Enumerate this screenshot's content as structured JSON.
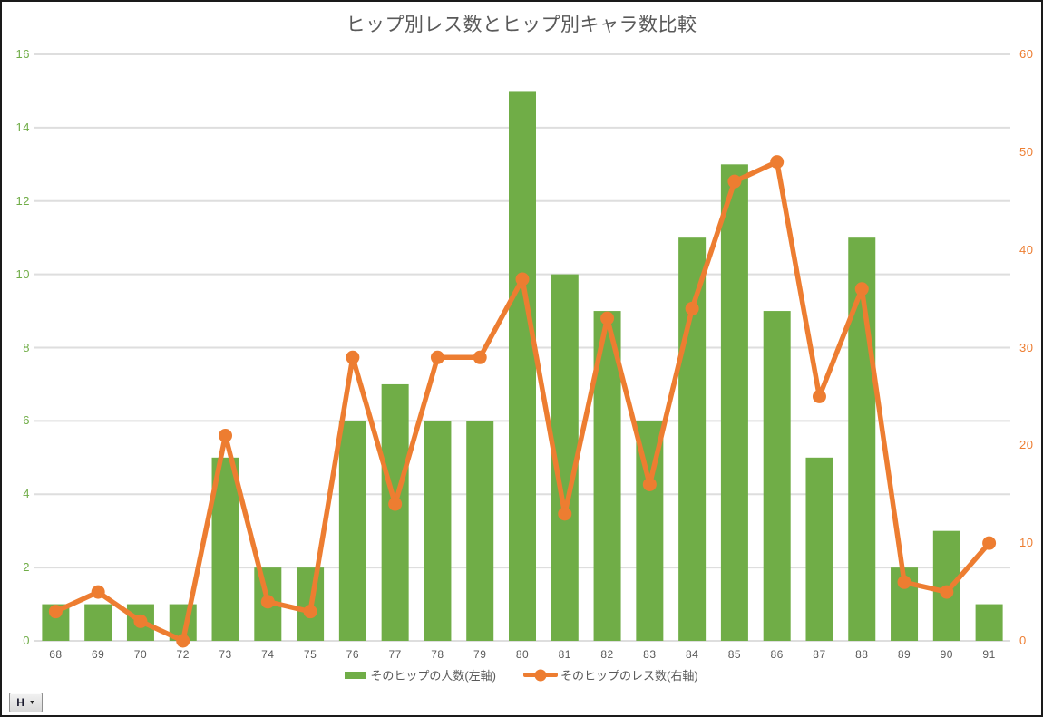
{
  "window": {
    "background": "#ffffff",
    "frame_border_color": "#1a1a1a"
  },
  "controls": {
    "dropdown_label": "H",
    "caret_icon": "▼"
  },
  "chart_data": {
    "type": "bar+line",
    "title": "ヒップ別レス数とヒップ別キャラ数比較",
    "title_color": "#595959",
    "categories": [
      68,
      69,
      70,
      72,
      73,
      74,
      75,
      76,
      77,
      78,
      79,
      80,
      81,
      82,
      83,
      84,
      85,
      86,
      87,
      88,
      89,
      90,
      91
    ],
    "series": [
      {
        "name": "そのヒップの人数(左軸)",
        "type": "bar",
        "axis": "left",
        "color": "#70AD47",
        "values": [
          1,
          1,
          1,
          1,
          5,
          2,
          2,
          6,
          7,
          6,
          6,
          15,
          10,
          9,
          6,
          11,
          13,
          9,
          5,
          11,
          2,
          3,
          1
        ]
      },
      {
        "name": "そのヒップのレス数(右軸)",
        "type": "line",
        "axis": "right",
        "color": "#ED7D31",
        "values": [
          3,
          5,
          2,
          0,
          21,
          4,
          3,
          29,
          14,
          29,
          29,
          37,
          13,
          33,
          16,
          34,
          47,
          49,
          25,
          36,
          6,
          5,
          10
        ]
      }
    ],
    "left_axis": {
      "min": 0,
      "max": 16,
      "ticks": [
        0,
        2,
        4,
        6,
        8,
        10,
        12,
        14,
        16
      ],
      "color": "#70AD47"
    },
    "right_axis": {
      "min": 0,
      "max": 60,
      "ticks": [
        0,
        10,
        20,
        30,
        40,
        50,
        60
      ],
      "color": "#ED7D31"
    },
    "x_axis": {
      "label_color": "#595959"
    },
    "grid": {
      "show": true,
      "color": "#DEDEDE"
    },
    "legend": {
      "position": "bottom"
    }
  }
}
